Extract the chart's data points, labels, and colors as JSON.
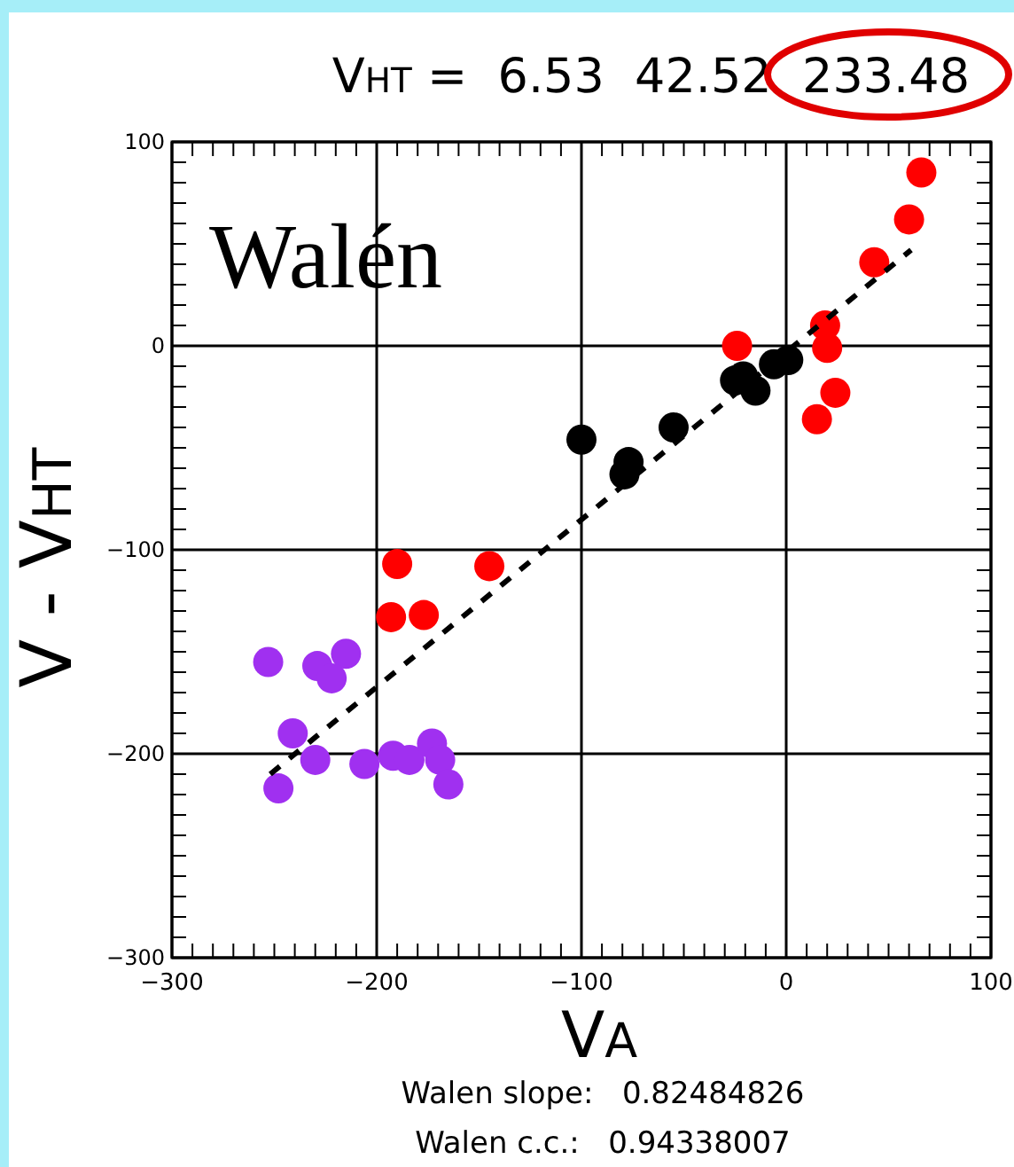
{
  "chart_data": {
    "type": "scatter",
    "title": "V$_{HT}$ =  6.53  42.52  233.48",
    "xlabel": "V$_{A}$",
    "ylabel": "V - V$_{HT}$",
    "annotations": [
      "Walén",
      "Walen slope:   0.82484826",
      "Walen c.c.:   0.94338007"
    ],
    "xlim": [
      -300,
      100
    ],
    "ylim": [
      -300,
      100
    ],
    "xticks": [
      -300,
      {
        "value": -290,
        "label": null
      },
      {
        "value": -280,
        "label": null
      },
      {
        "value": -270,
        "label": null
      },
      {
        "value": -260,
        "label": null
      },
      {
        "value": -250,
        "label": null
      },
      {
        "value": -240,
        "label": null
      },
      {
        "value": -230,
        "label": null
      },
      {
        "value": -220,
        "label": null
      },
      {
        "value": -210,
        "label": null
      },
      -200,
      {
        "value": -190,
        "label": null
      },
      {
        "value": -180,
        "label": null
      },
      {
        "value": -170,
        "label": null
      },
      {
        "value": -160,
        "label": null
      },
      {
        "value": -150,
        "label": null
      },
      {
        "value": -140,
        "label": null
      },
      {
        "value": -130,
        "label": null
      },
      {
        "value": -120,
        "label": null
      },
      {
        "value": -110,
        "label": null
      },
      -100,
      {
        "value": -90,
        "label": null
      },
      {
        "value": -80,
        "label": null
      },
      {
        "value": -70,
        "label": null
      },
      {
        "value": -60,
        "label": null
      },
      {
        "value": -50,
        "label": null
      },
      {
        "value": -40,
        "label": null
      },
      {
        "value": -30,
        "label": null
      },
      {
        "value": -20,
        "label": null
      },
      {
        "value": -10,
        "label": null
      },
      0,
      {
        "value": 10,
        "label": null
      },
      {
        "value": 20,
        "label": null
      },
      {
        "value": 30,
        "label": null
      },
      {
        "value": 40,
        "label": null
      },
      {
        "value": 50,
        "label": null
      },
      {
        "value": 60,
        "label": null
      },
      {
        "value": 70,
        "label": null
      },
      {
        "value": 80,
        "label": null
      },
      {
        "value": 90,
        "label": null
      },
      100
    ],
    "yticks": [
      -300,
      {
        "value": -290,
        "label": null
      },
      {
        "value": -280,
        "label": null
      },
      {
        "value": -270,
        "label": null
      },
      {
        "value": -260,
        "label": null
      },
      {
        "value": -250,
        "label": null
      },
      {
        "value": -240,
        "label": null
      },
      {
        "value": -230,
        "label": null
      },
      {
        "value": -220,
        "label": null
      },
      {
        "value": -210,
        "label": null
      },
      -200,
      {
        "value": -190,
        "label": null
      },
      {
        "value": -180,
        "label": null
      },
      {
        "value": -170,
        "label": null
      },
      {
        "value": -160,
        "label": null
      },
      {
        "value": -150,
        "label": null
      },
      {
        "value": -140,
        "label": null
      },
      {
        "value": -130,
        "label": null
      },
      {
        "value": -120,
        "label": null
      },
      {
        "value": -110,
        "label": null
      },
      -100,
      {
        "value": -90,
        "label": null
      },
      {
        "value": -80,
        "label": null
      },
      {
        "value": -70,
        "label": null
      },
      {
        "value": -60,
        "label": null
      },
      {
        "value": -50,
        "label": null
      },
      {
        "value": -40,
        "label": null
      },
      {
        "value": -30,
        "label": null
      },
      {
        "value": -20,
        "label": null
      },
      {
        "value": -10,
        "label": null
      },
      0,
      {
        "value": 10,
        "label": null
      },
      {
        "value": 20,
        "label": null
      },
      {
        "value": 30,
        "label": null
      },
      {
        "value": 40,
        "label": null
      },
      {
        "value": 50,
        "label": null
      },
      {
        "value": 60,
        "label": null
      },
      {
        "value": 70,
        "label": null
      },
      {
        "value": 80,
        "label": null
      },
      {
        "value": 90,
        "label": null
      },
      100
    ],
    "grid": true,
    "marker": "circle",
    "series": [
      {
        "color": "#a030f0",
        "x": [
          -253,
          -229,
          -215,
          -222,
          -241,
          -230,
          -248,
          -206,
          -192,
          -184,
          -173,
          -169,
          -165
        ],
        "values": [
          -155,
          -157,
          -151,
          -163,
          -190,
          -203,
          -217,
          -205,
          -201,
          -203,
          -195,
          -203,
          -215
        ]
      },
      {
        "color": "#ff0000",
        "x": [
          -190,
          -145,
          -193,
          -177,
          -24,
          15,
          24,
          20,
          19,
          43,
          60,
          66
        ],
        "values": [
          -107,
          -108,
          -133,
          -132,
          0,
          -36,
          -23,
          -1,
          10,
          41,
          62,
          85
        ]
      },
      {
        "color": "#000000",
        "x": [
          -100,
          -79,
          -77,
          -55,
          -25,
          -21,
          -15,
          -6,
          1
        ],
        "values": [
          -46,
          -63,
          -57,
          -40,
          -17,
          -15,
          -22,
          -9,
          -7
        ]
      },
      {
        "type": "line",
        "color": "#000000",
        "line_style": "dashed",
        "marker": "none",
        "x": [
          -252,
          61
        ],
        "values": [
          -210,
          47
        ]
      }
    ]
  }
}
